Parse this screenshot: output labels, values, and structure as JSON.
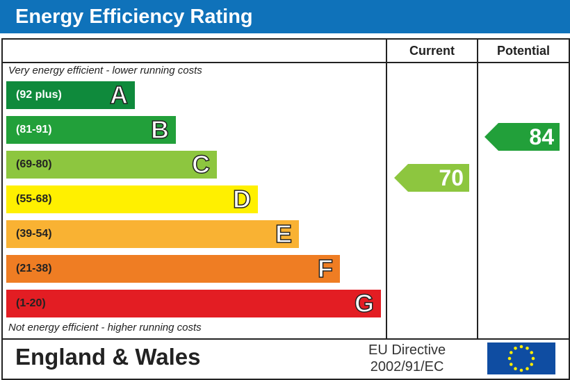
{
  "title": "Energy Efficiency Rating",
  "chart_data": {
    "type": "bar",
    "title": "Energy Efficiency Rating",
    "columns": [
      "Current",
      "Potential"
    ],
    "top_note": "Very energy efficient - lower running costs",
    "bottom_note": "Not energy efficient - higher running costs",
    "bands": [
      {
        "letter": "A",
        "range": "(92 plus)",
        "color": "#0f8a3c",
        "text": "#fff"
      },
      {
        "letter": "B",
        "range": "(81-91)",
        "color": "#22a03a",
        "text": "#fff"
      },
      {
        "letter": "C",
        "range": "(69-80)",
        "color": "#8dc63f",
        "text": "#222"
      },
      {
        "letter": "D",
        "range": "(55-68)",
        "color": "#fff000",
        "text": "#222"
      },
      {
        "letter": "E",
        "range": "(39-54)",
        "color": "#f9b233",
        "text": "#222"
      },
      {
        "letter": "F",
        "range": "(21-38)",
        "color": "#ef7d23",
        "text": "#222"
      },
      {
        "letter": "G",
        "range": "(1-20)",
        "color": "#e31d23",
        "text": "#222"
      }
    ],
    "current": {
      "value": "70",
      "band": "C",
      "color": "#8dc63f"
    },
    "potential": {
      "value": "84",
      "band": "B",
      "color": "#22a03a"
    }
  },
  "footer": {
    "country": "England & Wales",
    "directive_line1": "EU Directive",
    "directive_line2": "2002/91/EC",
    "flag_color": "#0f4da2",
    "star_color": "#ffed00"
  }
}
